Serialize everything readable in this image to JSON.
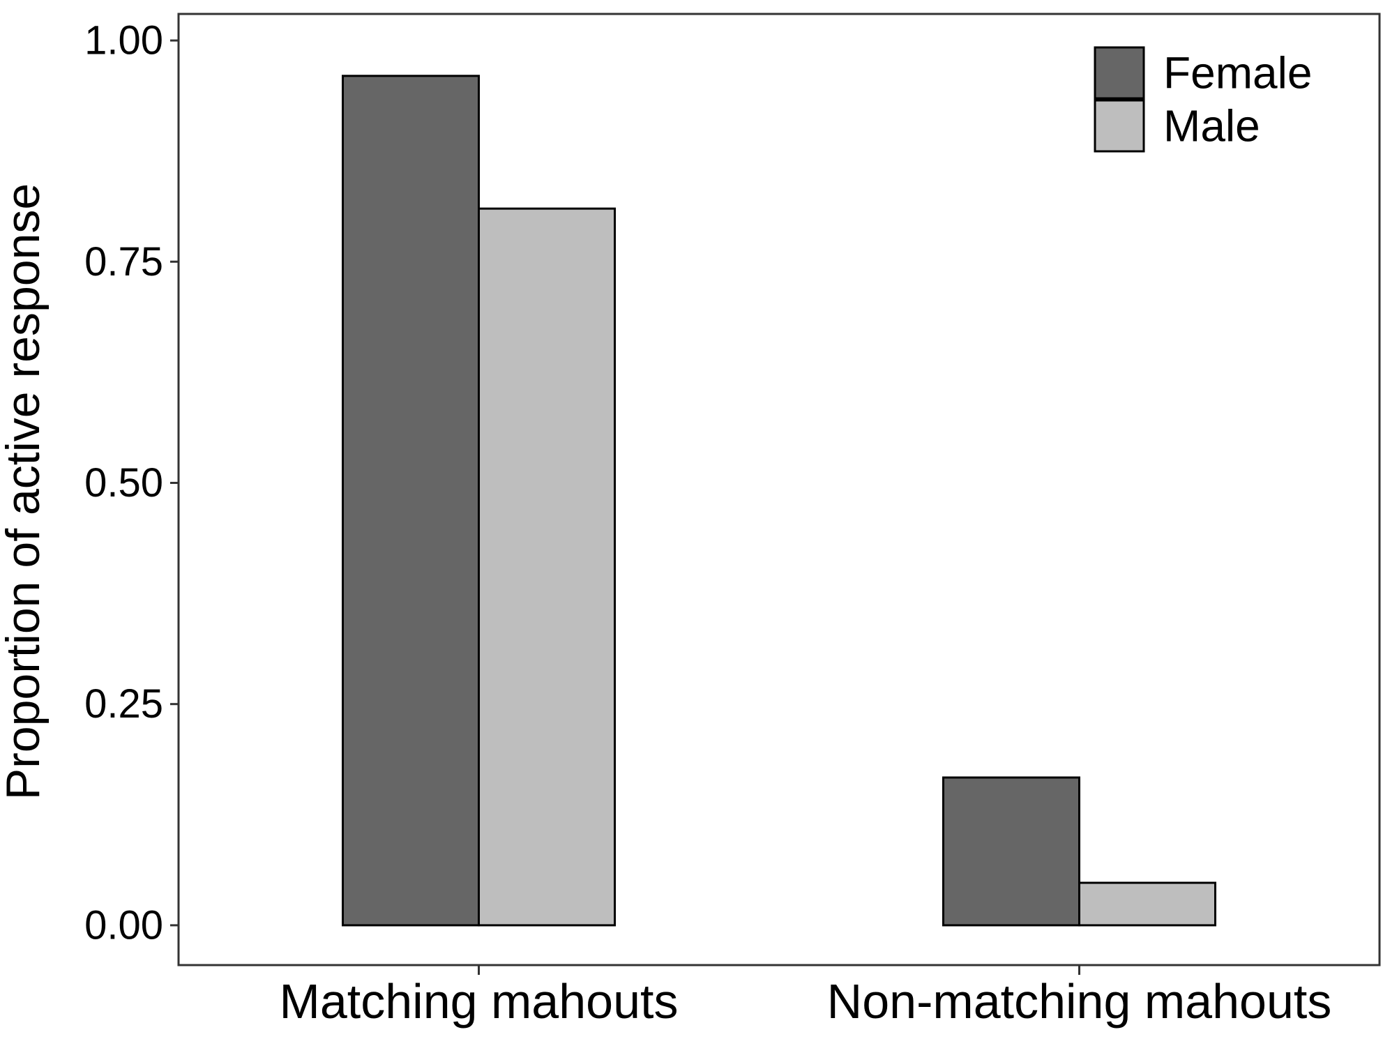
{
  "chart_data": {
    "type": "bar",
    "title": "",
    "xlabel": "",
    "ylabel": "Proportion of active response",
    "categories": [
      "Matching mahouts",
      "Non-matching mahouts"
    ],
    "series": [
      {
        "name": "Female",
        "values": [
          0.96,
          0.167
        ],
        "color": "#666666"
      },
      {
        "name": "Male",
        "values": [
          0.81,
          0.048
        ],
        "color": "#bebebe"
      }
    ],
    "ylim": [
      -0.045,
      1.03
    ],
    "yticks": [
      0.0,
      0.25,
      0.5,
      0.75,
      1.0
    ],
    "ytick_labels": [
      "0.00",
      "0.25",
      "0.50",
      "0.75",
      "1.00"
    ],
    "grid": false,
    "legend_position": "top-right",
    "bar_outline_color": "#000000"
  }
}
